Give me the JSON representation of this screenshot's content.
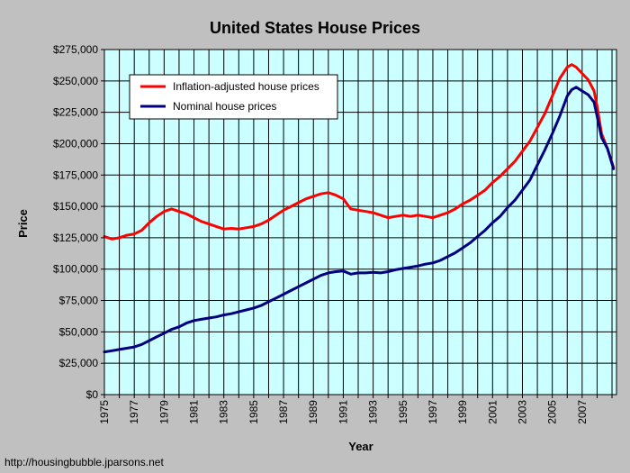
{
  "chart_data": {
    "type": "line",
    "title": "United States House Prices",
    "xlabel": "Year",
    "ylabel": "Price",
    "source": "http://housingbubble.jparsons.net",
    "xlim": [
      1975,
      2009.3
    ],
    "ylim": [
      0,
      275000
    ],
    "y_ticks": [
      0,
      25000,
      50000,
      75000,
      100000,
      125000,
      150000,
      175000,
      200000,
      225000,
      250000,
      275000
    ],
    "y_tick_labels": [
      "$0",
      "$25,000",
      "$50,000",
      "$75,000",
      "$100,000",
      "$125,000",
      "$150,000",
      "$175,000",
      "$200,000",
      "$225,000",
      "$250,000",
      "$275,000"
    ],
    "x_ticks": [
      1975,
      1977,
      1979,
      1981,
      1983,
      1985,
      1987,
      1989,
      1991,
      1993,
      1995,
      1997,
      1999,
      2001,
      2003,
      2005,
      2007
    ],
    "x_tick_labels": [
      "1975",
      "1977",
      "1979",
      "1981",
      "1983",
      "1985",
      "1987",
      "1989",
      "1991",
      "1993",
      "1995",
      "1997",
      "1999",
      "2001",
      "2003",
      "2005",
      "2007"
    ],
    "grid": true,
    "legend_position": "top-left",
    "plot_background": "#ccffff",
    "series": [
      {
        "name": "Inflation-adjusted house prices",
        "color": "#ff0000",
        "points": [
          [
            1975.0,
            126000
          ],
          [
            1975.5,
            124000
          ],
          [
            1976.0,
            125000
          ],
          [
            1976.5,
            127000
          ],
          [
            1977.0,
            128000
          ],
          [
            1977.5,
            131000
          ],
          [
            1978.0,
            137000
          ],
          [
            1978.5,
            142000
          ],
          [
            1979.0,
            146000
          ],
          [
            1979.5,
            148000
          ],
          [
            1980.0,
            146000
          ],
          [
            1980.5,
            144000
          ],
          [
            1981.0,
            141000
          ],
          [
            1981.5,
            138000
          ],
          [
            1982.0,
            136000
          ],
          [
            1982.5,
            134000
          ],
          [
            1983.0,
            132000
          ],
          [
            1983.5,
            132500
          ],
          [
            1984.0,
            132000
          ],
          [
            1984.5,
            133000
          ],
          [
            1985.0,
            134000
          ],
          [
            1985.5,
            136000
          ],
          [
            1986.0,
            139000
          ],
          [
            1986.5,
            143000
          ],
          [
            1987.0,
            147000
          ],
          [
            1987.5,
            150000
          ],
          [
            1988.0,
            153000
          ],
          [
            1988.5,
            156000
          ],
          [
            1989.0,
            158000
          ],
          [
            1989.5,
            160000
          ],
          [
            1990.0,
            161000
          ],
          [
            1990.5,
            159000
          ],
          [
            1991.0,
            156000
          ],
          [
            1991.5,
            148000
          ],
          [
            1992.0,
            147000
          ],
          [
            1992.5,
            146000
          ],
          [
            1993.0,
            145000
          ],
          [
            1993.5,
            143000
          ],
          [
            1994.0,
            141000
          ],
          [
            1994.5,
            142000
          ],
          [
            1995.0,
            143000
          ],
          [
            1995.5,
            142000
          ],
          [
            1996.0,
            143000
          ],
          [
            1996.5,
            142000
          ],
          [
            1997.0,
            141000
          ],
          [
            1997.5,
            143000
          ],
          [
            1998.0,
            145000
          ],
          [
            1998.5,
            148000
          ],
          [
            1999.0,
            152000
          ],
          [
            1999.5,
            155000
          ],
          [
            2000.0,
            159000
          ],
          [
            2000.5,
            163000
          ],
          [
            2001.0,
            169000
          ],
          [
            2001.5,
            174000
          ],
          [
            2002.0,
            180000
          ],
          [
            2002.5,
            186000
          ],
          [
            2003.0,
            194000
          ],
          [
            2003.5,
            202000
          ],
          [
            2004.0,
            213000
          ],
          [
            2004.5,
            224000
          ],
          [
            2005.0,
            238000
          ],
          [
            2005.5,
            252000
          ],
          [
            2006.0,
            261000
          ],
          [
            2006.3,
            263000
          ],
          [
            2006.6,
            261000
          ],
          [
            2007.0,
            256000
          ],
          [
            2007.4,
            251000
          ],
          [
            2007.8,
            242000
          ],
          [
            2008.0,
            230000
          ],
          [
            2008.3,
            208000
          ],
          [
            2008.7,
            196000
          ],
          [
            2009.1,
            181000
          ]
        ]
      },
      {
        "name": "Nominal house prices",
        "color": "#000080",
        "points": [
          [
            1975.0,
            34000
          ],
          [
            1975.5,
            35000
          ],
          [
            1976.0,
            36000
          ],
          [
            1976.5,
            37000
          ],
          [
            1977.0,
            38000
          ],
          [
            1977.5,
            40000
          ],
          [
            1978.0,
            43000
          ],
          [
            1978.5,
            46000
          ],
          [
            1979.0,
            49000
          ],
          [
            1979.5,
            52000
          ],
          [
            1980.0,
            54000
          ],
          [
            1980.5,
            57000
          ],
          [
            1981.0,
            59000
          ],
          [
            1981.5,
            60000
          ],
          [
            1982.0,
            61000
          ],
          [
            1982.5,
            62000
          ],
          [
            1983.0,
            63500
          ],
          [
            1983.5,
            64500
          ],
          [
            1984.0,
            66000
          ],
          [
            1984.5,
            67500
          ],
          [
            1985.0,
            69000
          ],
          [
            1985.5,
            71000
          ],
          [
            1986.0,
            74000
          ],
          [
            1986.5,
            77000
          ],
          [
            1987.0,
            80000
          ],
          [
            1987.5,
            83000
          ],
          [
            1988.0,
            86000
          ],
          [
            1988.5,
            89000
          ],
          [
            1989.0,
            92000
          ],
          [
            1989.5,
            95000
          ],
          [
            1990.0,
            97000
          ],
          [
            1990.5,
            98000
          ],
          [
            1991.0,
            98500
          ],
          [
            1991.5,
            96000
          ],
          [
            1992.0,
            97000
          ],
          [
            1992.5,
            97000
          ],
          [
            1993.0,
            97500
          ],
          [
            1993.5,
            97000
          ],
          [
            1994.0,
            98000
          ],
          [
            1994.5,
            99500
          ],
          [
            1995.0,
            100500
          ],
          [
            1995.5,
            101500
          ],
          [
            1996.0,
            102500
          ],
          [
            1996.5,
            104000
          ],
          [
            1997.0,
            105000
          ],
          [
            1997.5,
            107000
          ],
          [
            1998.0,
            110000
          ],
          [
            1998.5,
            113000
          ],
          [
            1999.0,
            117000
          ],
          [
            1999.5,
            121000
          ],
          [
            2000.0,
            126000
          ],
          [
            2000.5,
            131000
          ],
          [
            2001.0,
            137000
          ],
          [
            2001.5,
            142000
          ],
          [
            2002.0,
            149000
          ],
          [
            2002.5,
            155000
          ],
          [
            2003.0,
            163000
          ],
          [
            2003.5,
            171000
          ],
          [
            2004.0,
            183000
          ],
          [
            2004.5,
            195000
          ],
          [
            2005.0,
            208000
          ],
          [
            2005.5,
            222000
          ],
          [
            2006.0,
            238000
          ],
          [
            2006.3,
            243000
          ],
          [
            2006.6,
            245000
          ],
          [
            2007.0,
            242000
          ],
          [
            2007.4,
            239000
          ],
          [
            2007.8,
            233000
          ],
          [
            2008.0,
            222000
          ],
          [
            2008.3,
            205000
          ],
          [
            2008.7,
            196000
          ],
          [
            2009.1,
            180000
          ]
        ]
      }
    ]
  }
}
